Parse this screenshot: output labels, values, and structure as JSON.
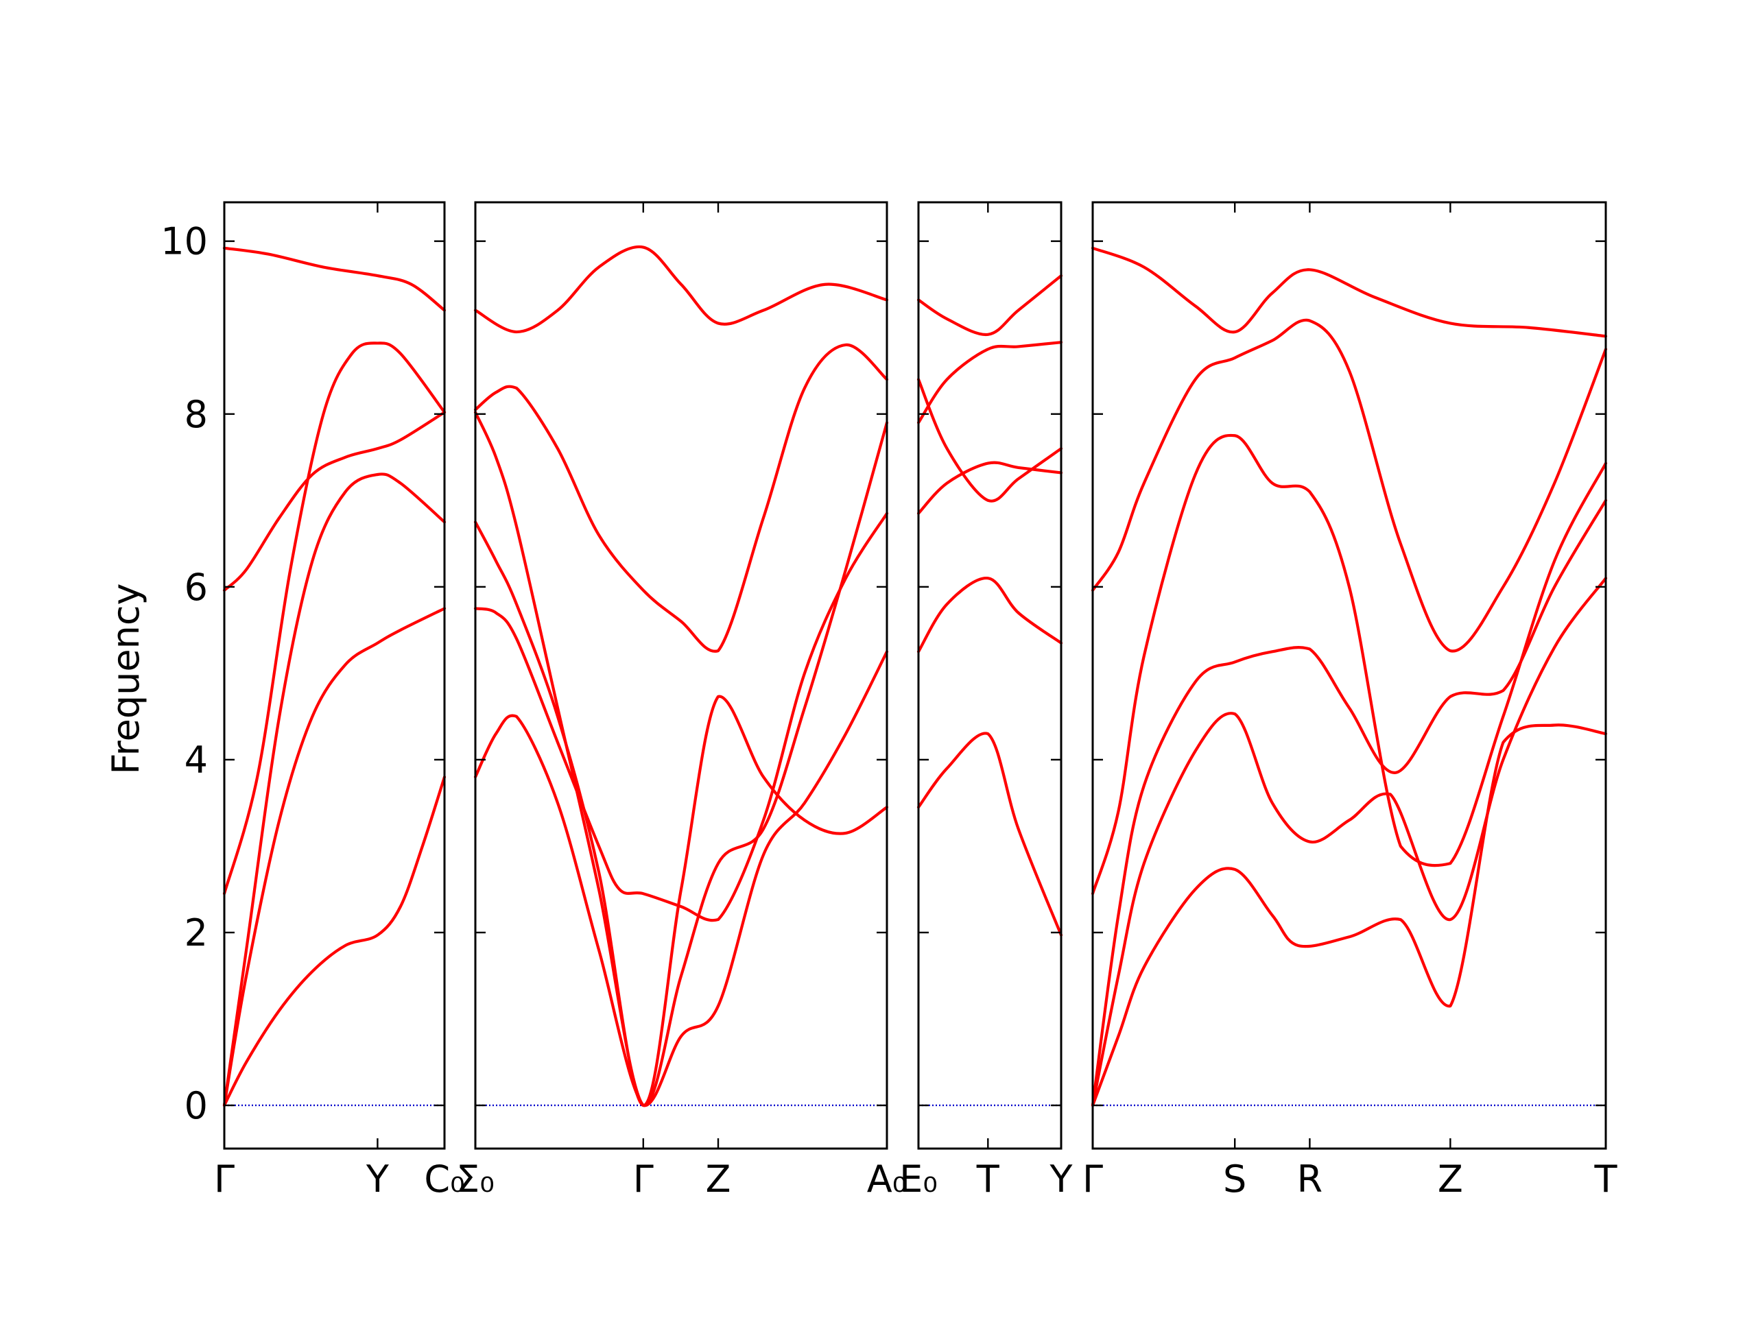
{
  "chart_data": {
    "type": "line",
    "title": "",
    "ylabel": "Frequency",
    "ylim": [
      -0.5,
      10.45
    ],
    "yticks": [
      "0",
      "2",
      "4",
      "6",
      "8",
      "10"
    ],
    "line_color": "#ff0000",
    "zero_line_color": "#0000cc",
    "panels": [
      {
        "id": "panel-1",
        "x": [
          0,
          0.696,
          1
        ],
        "labels": [
          "Γ",
          "Y",
          "C₀"
        ],
        "bands": [
          [
            [
              0,
              9.92
            ],
            [
              0.2,
              9.85
            ],
            [
              0.45,
              9.7
            ],
            [
              0.696,
              9.6
            ],
            [
              0.85,
              9.5
            ],
            [
              1,
              9.2
            ]
          ],
          [
            [
              0,
              2.45
            ],
            [
              0.15,
              3.8
            ],
            [
              0.3,
              6.2
            ],
            [
              0.45,
              8.0
            ],
            [
              0.58,
              8.7
            ],
            [
              0.696,
              8.82
            ],
            [
              0.8,
              8.7
            ],
            [
              1,
              8.02
            ]
          ],
          [
            [
              0,
              5.96
            ],
            [
              0.1,
              6.2
            ],
            [
              0.25,
              6.8
            ],
            [
              0.4,
              7.3
            ],
            [
              0.55,
              7.5
            ],
            [
              0.696,
              7.6
            ],
            [
              0.8,
              7.7
            ],
            [
              1,
              8.02
            ]
          ],
          [
            [
              0,
              0
            ],
            [
              0.1,
              1.8
            ],
            [
              0.25,
              4.5
            ],
            [
              0.4,
              6.3
            ],
            [
              0.55,
              7.1
            ],
            [
              0.696,
              7.3
            ],
            [
              0.8,
              7.2
            ],
            [
              1,
              6.75
            ]
          ],
          [
            [
              0,
              0
            ],
            [
              0.1,
              1.5
            ],
            [
              0.25,
              3.3
            ],
            [
              0.4,
              4.5
            ],
            [
              0.55,
              5.1
            ],
            [
              0.696,
              5.35
            ],
            [
              0.8,
              5.5
            ],
            [
              1,
              5.75
            ]
          ],
          [
            [
              0,
              0
            ],
            [
              0.1,
              0.5
            ],
            [
              0.25,
              1.1
            ],
            [
              0.4,
              1.55
            ],
            [
              0.55,
              1.85
            ],
            [
              0.696,
              1.97
            ],
            [
              0.8,
              2.3
            ],
            [
              0.9,
              3.0
            ],
            [
              1,
              3.8
            ]
          ]
        ]
      },
      {
        "id": "panel-2",
        "x": [
          0,
          0.408,
          0.59,
          1
        ],
        "labels": [
          "Σ₀",
          "Γ",
          "Z",
          "A₀"
        ],
        "bands": [
          [
            [
              0,
              9.2
            ],
            [
              0.1,
              8.95
            ],
            [
              0.2,
              9.2
            ],
            [
              0.3,
              9.7
            ],
            [
              0.408,
              9.93
            ],
            [
              0.5,
              9.5
            ],
            [
              0.59,
              9.05
            ],
            [
              0.7,
              9.2
            ],
            [
              0.85,
              9.5
            ],
            [
              1,
              9.32
            ]
          ],
          [
            [
              0,
              8.05
            ],
            [
              0.05,
              8.25
            ],
            [
              0.1,
              8.3
            ],
            [
              0.2,
              7.6
            ],
            [
              0.3,
              6.6
            ],
            [
              0.408,
              5.96
            ],
            [
              0.5,
              5.6
            ],
            [
              0.59,
              5.26
            ],
            [
              0.7,
              6.8
            ],
            [
              0.8,
              8.3
            ],
            [
              0.9,
              8.8
            ],
            [
              1,
              8.4
            ]
          ],
          [
            [
              0,
              8.02
            ],
            [
              0.05,
              7.5
            ],
            [
              0.1,
              6.7
            ],
            [
              0.2,
              4.6
            ],
            [
              0.3,
              2.5
            ],
            [
              0.408,
              0
            ],
            [
              0.5,
              1.5
            ],
            [
              0.59,
              2.8
            ],
            [
              0.7,
              3.2
            ],
            [
              0.8,
              4.6
            ],
            [
              0.9,
              6.2
            ],
            [
              1,
              7.9
            ]
          ],
          [
            [
              0,
              6.75
            ],
            [
              0.05,
              6.3
            ],
            [
              0.1,
              5.8
            ],
            [
              0.2,
              4.5
            ],
            [
              0.3,
              2.7
            ],
            [
              0.408,
              0
            ],
            [
              0.5,
              2.5
            ],
            [
              0.59,
              4.73
            ],
            [
              0.7,
              3.8
            ],
            [
              0.8,
              3.3
            ],
            [
              0.9,
              3.15
            ],
            [
              1,
              3.45
            ]
          ],
          [
            [
              0,
              5.75
            ],
            [
              0.05,
              5.7
            ],
            [
              0.1,
              5.4
            ],
            [
              0.2,
              4.2
            ],
            [
              0.3,
              3.0
            ],
            [
              0.35,
              2.5
            ],
            [
              0.408,
              2.45
            ],
            [
              0.5,
              2.3
            ],
            [
              0.59,
              2.15
            ],
            [
              0.7,
              3.3
            ],
            [
              0.8,
              5.0
            ],
            [
              0.9,
              6.1
            ],
            [
              1,
              6.85
            ]
          ],
          [
            [
              0,
              3.8
            ],
            [
              0.05,
              4.3
            ],
            [
              0.1,
              4.5
            ],
            [
              0.2,
              3.5
            ],
            [
              0.3,
              1.8
            ],
            [
              0.408,
              0
            ],
            [
              0.5,
              0.8
            ],
            [
              0.59,
              1.15
            ],
            [
              0.7,
              2.9
            ],
            [
              0.8,
              3.5
            ],
            [
              0.9,
              4.3
            ],
            [
              1,
              5.25
            ]
          ]
        ]
      },
      {
        "id": "panel-3",
        "x": [
          0,
          0.487,
          1
        ],
        "labels": [
          "E₀",
          "T",
          "Y"
        ],
        "bands": [
          [
            [
              0,
              9.32
            ],
            [
              0.2,
              9.1
            ],
            [
              0.487,
              8.92
            ],
            [
              0.7,
              9.2
            ],
            [
              1,
              9.6
            ]
          ],
          [
            [
              0,
              7.9
            ],
            [
              0.2,
              8.4
            ],
            [
              0.487,
              8.75
            ],
            [
              0.7,
              8.78
            ],
            [
              1,
              8.83
            ]
          ],
          [
            [
              0,
              8.4
            ],
            [
              0.2,
              7.6
            ],
            [
              0.487,
              7.0
            ],
            [
              0.7,
              7.25
            ],
            [
              1,
              7.6
            ]
          ],
          [
            [
              0,
              6.85
            ],
            [
              0.2,
              7.2
            ],
            [
              0.487,
              7.43
            ],
            [
              0.7,
              7.38
            ],
            [
              1,
              7.32
            ]
          ],
          [
            [
              0,
              5.25
            ],
            [
              0.2,
              5.8
            ],
            [
              0.487,
              6.1
            ],
            [
              0.7,
              5.7
            ],
            [
              1,
              5.35
            ]
          ],
          [
            [
              0,
              3.45
            ],
            [
              0.2,
              3.9
            ],
            [
              0.487,
              4.3
            ],
            [
              0.7,
              3.2
            ],
            [
              1,
              1.97
            ]
          ]
        ]
      },
      {
        "id": "panel-4",
        "x": [
          0,
          0.277,
          0.423,
          0.697,
          1
        ],
        "labels": [
          "Γ",
          "S",
          "R",
          "Z",
          "T"
        ],
        "bands": [
          [
            [
              0,
              9.92
            ],
            [
              0.1,
              9.7
            ],
            [
              0.2,
              9.25
            ],
            [
              0.277,
              8.95
            ],
            [
              0.35,
              9.4
            ],
            [
              0.423,
              9.67
            ],
            [
              0.55,
              9.35
            ],
            [
              0.697,
              9.05
            ],
            [
              0.85,
              9.0
            ],
            [
              1,
              8.9
            ]
          ],
          [
            [
              0,
              5.96
            ],
            [
              0.05,
              6.4
            ],
            [
              0.1,
              7.2
            ],
            [
              0.2,
              8.4
            ],
            [
              0.277,
              8.65
            ],
            [
              0.35,
              8.85
            ],
            [
              0.423,
              9.08
            ],
            [
              0.5,
              8.5
            ],
            [
              0.6,
              6.5
            ],
            [
              0.697,
              5.26
            ],
            [
              0.8,
              6.0
            ],
            [
              0.9,
              7.2
            ],
            [
              1,
              8.75
            ]
          ],
          [
            [
              0,
              2.45
            ],
            [
              0.05,
              3.4
            ],
            [
              0.1,
              5.2
            ],
            [
              0.2,
              7.3
            ],
            [
              0.277,
              7.75
            ],
            [
              0.35,
              7.2
            ],
            [
              0.423,
              7.1
            ],
            [
              0.5,
              6.0
            ],
            [
              0.6,
              3.0
            ],
            [
              0.697,
              2.8
            ],
            [
              0.8,
              4.5
            ],
            [
              0.9,
              6.3
            ],
            [
              1,
              7.43
            ]
          ],
          [
            [
              0,
              0
            ],
            [
              0.05,
              2.2
            ],
            [
              0.1,
              3.7
            ],
            [
              0.2,
              4.9
            ],
            [
              0.277,
              5.13
            ],
            [
              0.35,
              5.25
            ],
            [
              0.423,
              5.28
            ],
            [
              0.5,
              4.6
            ],
            [
              0.59,
              3.85
            ],
            [
              0.697,
              4.73
            ],
            [
              0.8,
              4.8
            ],
            [
              0.9,
              6.0
            ],
            [
              1,
              7.0
            ]
          ],
          [
            [
              0,
              0
            ],
            [
              0.05,
              1.5
            ],
            [
              0.1,
              2.8
            ],
            [
              0.2,
              4.1
            ],
            [
              0.277,
              4.53
            ],
            [
              0.35,
              3.5
            ],
            [
              0.423,
              3.05
            ],
            [
              0.5,
              3.3
            ],
            [
              0.58,
              3.6
            ],
            [
              0.697,
              2.15
            ],
            [
              0.8,
              4.0
            ],
            [
              0.9,
              5.3
            ],
            [
              1,
              6.1
            ]
          ],
          [
            [
              0,
              0
            ],
            [
              0.05,
              0.8
            ],
            [
              0.1,
              1.6
            ],
            [
              0.2,
              2.5
            ],
            [
              0.277,
              2.73
            ],
            [
              0.35,
              2.2
            ],
            [
              0.4,
              1.85
            ],
            [
              0.5,
              1.95
            ],
            [
              0.6,
              2.15
            ],
            [
              0.697,
              1.15
            ],
            [
              0.8,
              4.2
            ],
            [
              0.9,
              4.4
            ],
            [
              1,
              4.3
            ]
          ]
        ]
      }
    ]
  }
}
